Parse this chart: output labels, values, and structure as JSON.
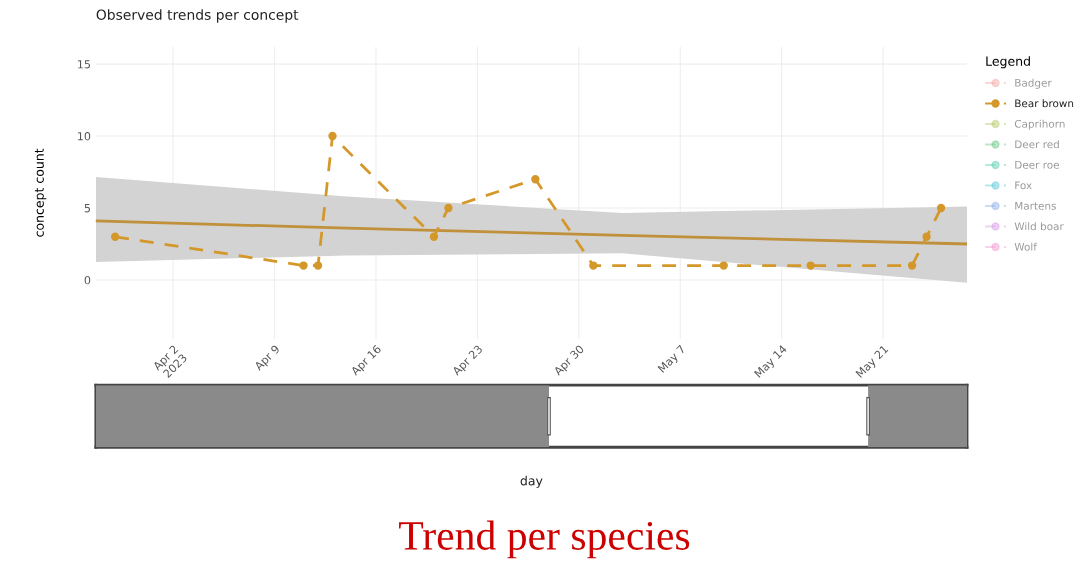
{
  "chart_data": {
    "type": "line",
    "title": "Observed trends per concept",
    "ylabel": "concept count",
    "legend_title": "Legend",
    "legend": "right",
    "grid": true,
    "xlim": [
      "2023-03-27T16:00",
      "2023-05-26T19:00"
    ],
    "ylim": [
      -4.1,
      16.2
    ],
    "yticks": [
      0,
      5,
      10,
      15
    ],
    "xticks": [
      {
        "value": "2023-04-02",
        "label": "Apr 2\n2023"
      },
      {
        "value": "2023-04-09",
        "label": "Apr 9"
      },
      {
        "value": "2023-04-16",
        "label": "Apr 16"
      },
      {
        "value": "2023-04-23",
        "label": "Apr 23"
      },
      {
        "value": "2023-04-30",
        "label": "Apr 30"
      },
      {
        "value": "2023-05-07",
        "label": "May 7"
      },
      {
        "value": "2023-05-14",
        "label": "May 14"
      },
      {
        "value": "2023-05-21",
        "label": "May 21"
      }
    ],
    "series": [
      {
        "name": "Badger",
        "color": "#f4a6a6"
      },
      {
        "name": "Bear brown",
        "color": "#d4982a",
        "marker": "circle",
        "line_style": "dashed",
        "x": [
          "2023-03-29",
          "2023-04-11",
          "2023-04-12",
          "2023-04-13",
          "2023-04-20",
          "2023-04-21",
          "2023-04-27",
          "2023-05-01",
          "2023-05-10",
          "2023-05-16",
          "2023-05-23",
          "2023-05-24",
          "2023-05-25"
        ],
        "values": [
          3,
          1,
          1,
          10,
          3,
          5,
          7,
          1,
          1,
          1,
          1,
          3,
          5
        ]
      },
      {
        "name": "Caprihorn",
        "color": "#b5c96a"
      },
      {
        "name": "Deer red",
        "color": "#6cc788"
      },
      {
        "name": "Deer roe",
        "color": "#5ccfb0"
      },
      {
        "name": "Fox",
        "color": "#5ec8d8"
      },
      {
        "name": "Martens",
        "color": "#8fb0e8"
      },
      {
        "name": "Wild boar",
        "color": "#d99be8"
      },
      {
        "name": "Wolf",
        "color": "#f29ad0"
      },
      {
        "color": "#c0903a",
        "line_style": "solid",
        "marker": "none",
        "x": [
          "2023-03-27T16:00",
          "2023-04-14",
          "2023-05-03",
          "2023-05-26T19:00"
        ],
        "values": [
          4.1,
          3.6,
          3.1,
          2.5
        ],
        "lower": [
          1.25,
          1.7,
          1.85,
          -0.2
        ],
        "upper": [
          7.15,
          5.8,
          4.65,
          5.1
        ]
      }
    ],
    "annotations": [
      "day",
      "Trend per species"
    ]
  }
}
